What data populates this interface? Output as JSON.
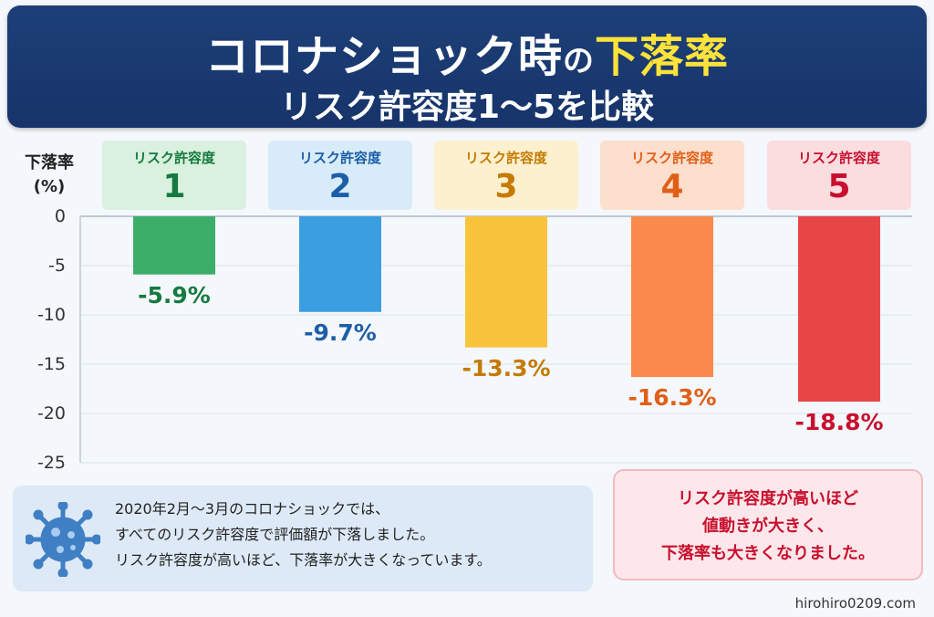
{
  "header": {
    "title_main": "コロナショック時",
    "title_particle": "の",
    "title_highlight": "下落率",
    "subtitle": "リスク許容度1〜5を比較"
  },
  "chart_data": {
    "type": "bar",
    "title": "コロナショック時の下落率",
    "subtitle": "リスク許容度1〜5を比較",
    "ylabel": "下落率",
    "yunit": "(%)",
    "ylim": [
      -25,
      0
    ],
    "yticks": [
      "0",
      "-5",
      "-10",
      "-15",
      "-20",
      "-25"
    ],
    "ytick_values": [
      0,
      -5,
      -10,
      -15,
      -20,
      -25
    ],
    "grid": true,
    "category_prefix": "リスク許容度",
    "categories": [
      "1",
      "2",
      "3",
      "4",
      "5"
    ],
    "values": [
      -5.9,
      -9.7,
      -13.3,
      -16.3,
      -18.8
    ],
    "value_labels": [
      "-5.9%",
      "-9.7%",
      "-13.3%",
      "-16.3%",
      "-18.8%"
    ],
    "colors": {
      "bars": [
        "#3cae6a",
        "#3a9ee0",
        "#f9c43c",
        "#f98a4c",
        "#e84646"
      ],
      "label_text": [
        "#157a3f",
        "#1c5fa8",
        "#c47b00",
        "#e05f18",
        "#c8102e"
      ],
      "header_bg": [
        "#d9f1de",
        "#d8ebf8",
        "#fdf0cf",
        "#fcdfcd",
        "#fbdde0"
      ]
    }
  },
  "info": {
    "icon": "virus-icon",
    "lines": [
      "2020年2月〜3月のコロナショックでは、",
      "すべてのリスク許容度で評価額が下落しました。",
      "リスク許容度が高いほど、下落率が大きくなっています。"
    ]
  },
  "note": {
    "lines": [
      "リスク許容度が高いほど",
      "値動きが大きく、",
      "下落率も大きくなりました。"
    ]
  },
  "footer": {
    "site": "hirohiro0209.com"
  }
}
